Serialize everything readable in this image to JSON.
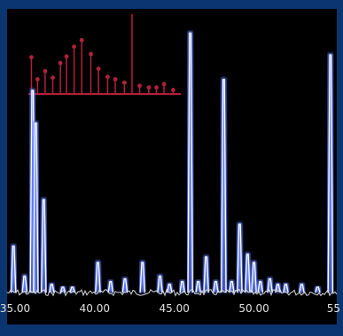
{
  "chart_data": {
    "type": "line",
    "title": "",
    "xlabel": "",
    "ylabel": "",
    "x_ticks": [
      "35.00",
      "40.00",
      "45.00",
      "50.00",
      "55"
    ],
    "xlim": [
      34.5,
      55.2
    ],
    "ylim": [
      0,
      100
    ],
    "grid": false,
    "colors": {
      "frame": "#0b3570",
      "background": "#000000",
      "spectrum_glow": "#5f7dff",
      "spectrum_core": "#ffffff",
      "baseline": "#d8d8d8",
      "inset": "#b3203a"
    },
    "series": [
      {
        "peaks": [
          {
            "x": 34.9,
            "y": 17
          },
          {
            "x": 35.6,
            "y": 6
          },
          {
            "x": 36.1,
            "y": 74
          },
          {
            "x": 36.3,
            "y": 62
          },
          {
            "x": 36.8,
            "y": 34
          },
          {
            "x": 37.3,
            "y": 3
          },
          {
            "x": 38.0,
            "y": 2
          },
          {
            "x": 38.6,
            "y": 2
          },
          {
            "x": 40.2,
            "y": 11
          },
          {
            "x": 41.0,
            "y": 4
          },
          {
            "x": 41.9,
            "y": 5
          },
          {
            "x": 43.0,
            "y": 11
          },
          {
            "x": 44.1,
            "y": 6
          },
          {
            "x": 44.7,
            "y": 3
          },
          {
            "x": 45.5,
            "y": 4
          },
          {
            "x": 46.0,
            "y": 95
          },
          {
            "x": 46.5,
            "y": 4
          },
          {
            "x": 47.0,
            "y": 13
          },
          {
            "x": 47.6,
            "y": 4
          },
          {
            "x": 48.1,
            "y": 78
          },
          {
            "x": 48.6,
            "y": 4
          },
          {
            "x": 49.1,
            "y": 25
          },
          {
            "x": 49.6,
            "y": 14
          },
          {
            "x": 50.0,
            "y": 11
          },
          {
            "x": 50.4,
            "y": 4
          },
          {
            "x": 51.0,
            "y": 5
          },
          {
            "x": 51.5,
            "y": 3
          },
          {
            "x": 52.0,
            "y": 3
          },
          {
            "x": 53.0,
            "y": 3
          },
          {
            "x": 54.0,
            "y": 2
          },
          {
            "x": 54.8,
            "y": 87
          }
        ]
      }
    ],
    "inset": {
      "type": "stick",
      "x": [
        0.02,
        0.06,
        0.11,
        0.16,
        0.21,
        0.25,
        0.3,
        0.35,
        0.41,
        0.46,
        0.52,
        0.57,
        0.63,
        0.68,
        0.73,
        0.79,
        0.84,
        0.89,
        0.95
      ],
      "values": [
        45,
        18,
        28,
        20,
        38,
        46,
        58,
        66,
        49,
        31,
        21,
        18,
        14,
        98,
        10,
        8,
        8,
        12,
        5
      ]
    }
  }
}
